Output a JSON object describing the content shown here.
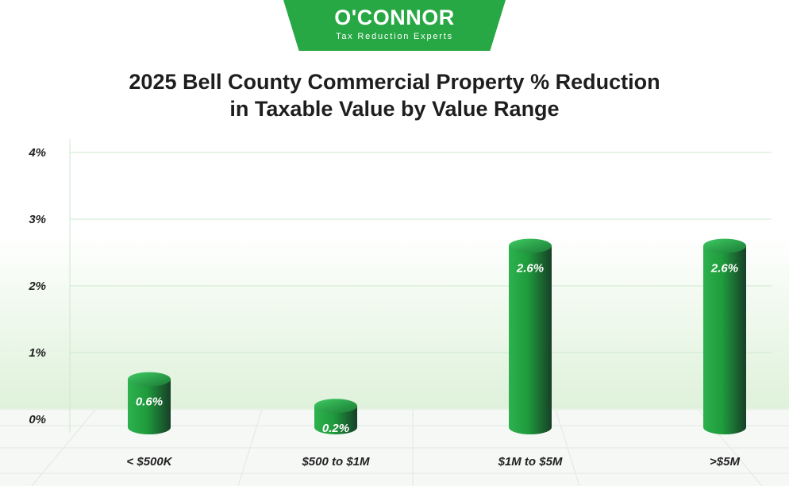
{
  "logo": {
    "name": "O'CONNOR",
    "tagline": "Tax Reduction Experts"
  },
  "chart_data": {
    "type": "bar",
    "title": "2025 Bell County Commercial Property % Reduction in Taxable Value by Value Range",
    "title_lines": [
      "2025 Bell County Commercial Property % Reduction",
      "in Taxable Value by Value Range"
    ],
    "categories": [
      "< $500K",
      "$500 to $1M",
      "$1M to $5M",
      ">$5M"
    ],
    "values": [
      0.6,
      0.2,
      2.6,
      2.6
    ],
    "data_labels": [
      "0.6%",
      "0.2%",
      "2.6%",
      "2.6%"
    ],
    "yticks": [
      0,
      1,
      2,
      3,
      4
    ],
    "ytick_labels": [
      "0%",
      "1%",
      "2%",
      "3%",
      "4%"
    ],
    "ylim": [
      0,
      4
    ],
    "xlabel": "",
    "ylabel": "",
    "grid": true,
    "bar_style": "cylinder",
    "colors": {
      "bar_light": "#35c058",
      "bar_mid": "#1f9a3c",
      "bar_dark": "#173f28",
      "grid": "#cde8cf",
      "text": "#222222",
      "brand": "#27a844"
    }
  }
}
